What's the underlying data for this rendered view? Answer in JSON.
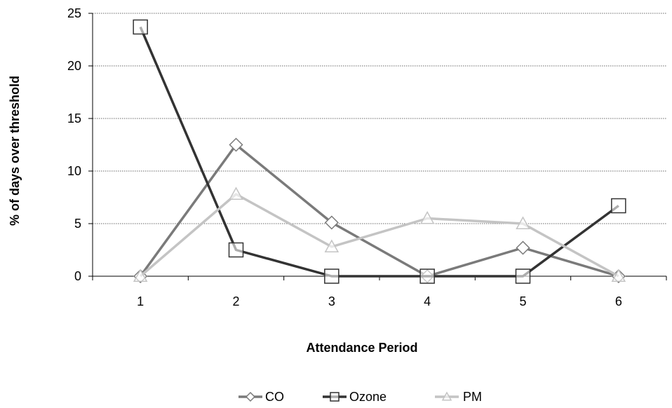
{
  "chart_data": {
    "type": "line",
    "title": "",
    "xlabel": "Attendance Period",
    "ylabel": "% of days over threshold",
    "categories": [
      "1",
      "2",
      "3",
      "4",
      "5",
      "6"
    ],
    "ylim": [
      0,
      25
    ],
    "yticks": [
      "0",
      "5",
      "10",
      "15",
      "20",
      "25"
    ],
    "grid": "horizontal",
    "legend_position": "bottom",
    "series": [
      {
        "name": "CO",
        "marker": "diamond",
        "color": "#7a7a7a",
        "values": [
          0,
          12.5,
          5.1,
          0,
          2.7,
          0
        ]
      },
      {
        "name": "Ozone",
        "marker": "square",
        "color": "#333333",
        "values": [
          23.7,
          2.5,
          0,
          0,
          0,
          6.7
        ]
      },
      {
        "name": "PM",
        "marker": "triangle",
        "color": "#c4c4c4",
        "values": [
          0,
          7.8,
          2.8,
          5.5,
          5.0,
          0
        ]
      }
    ]
  }
}
